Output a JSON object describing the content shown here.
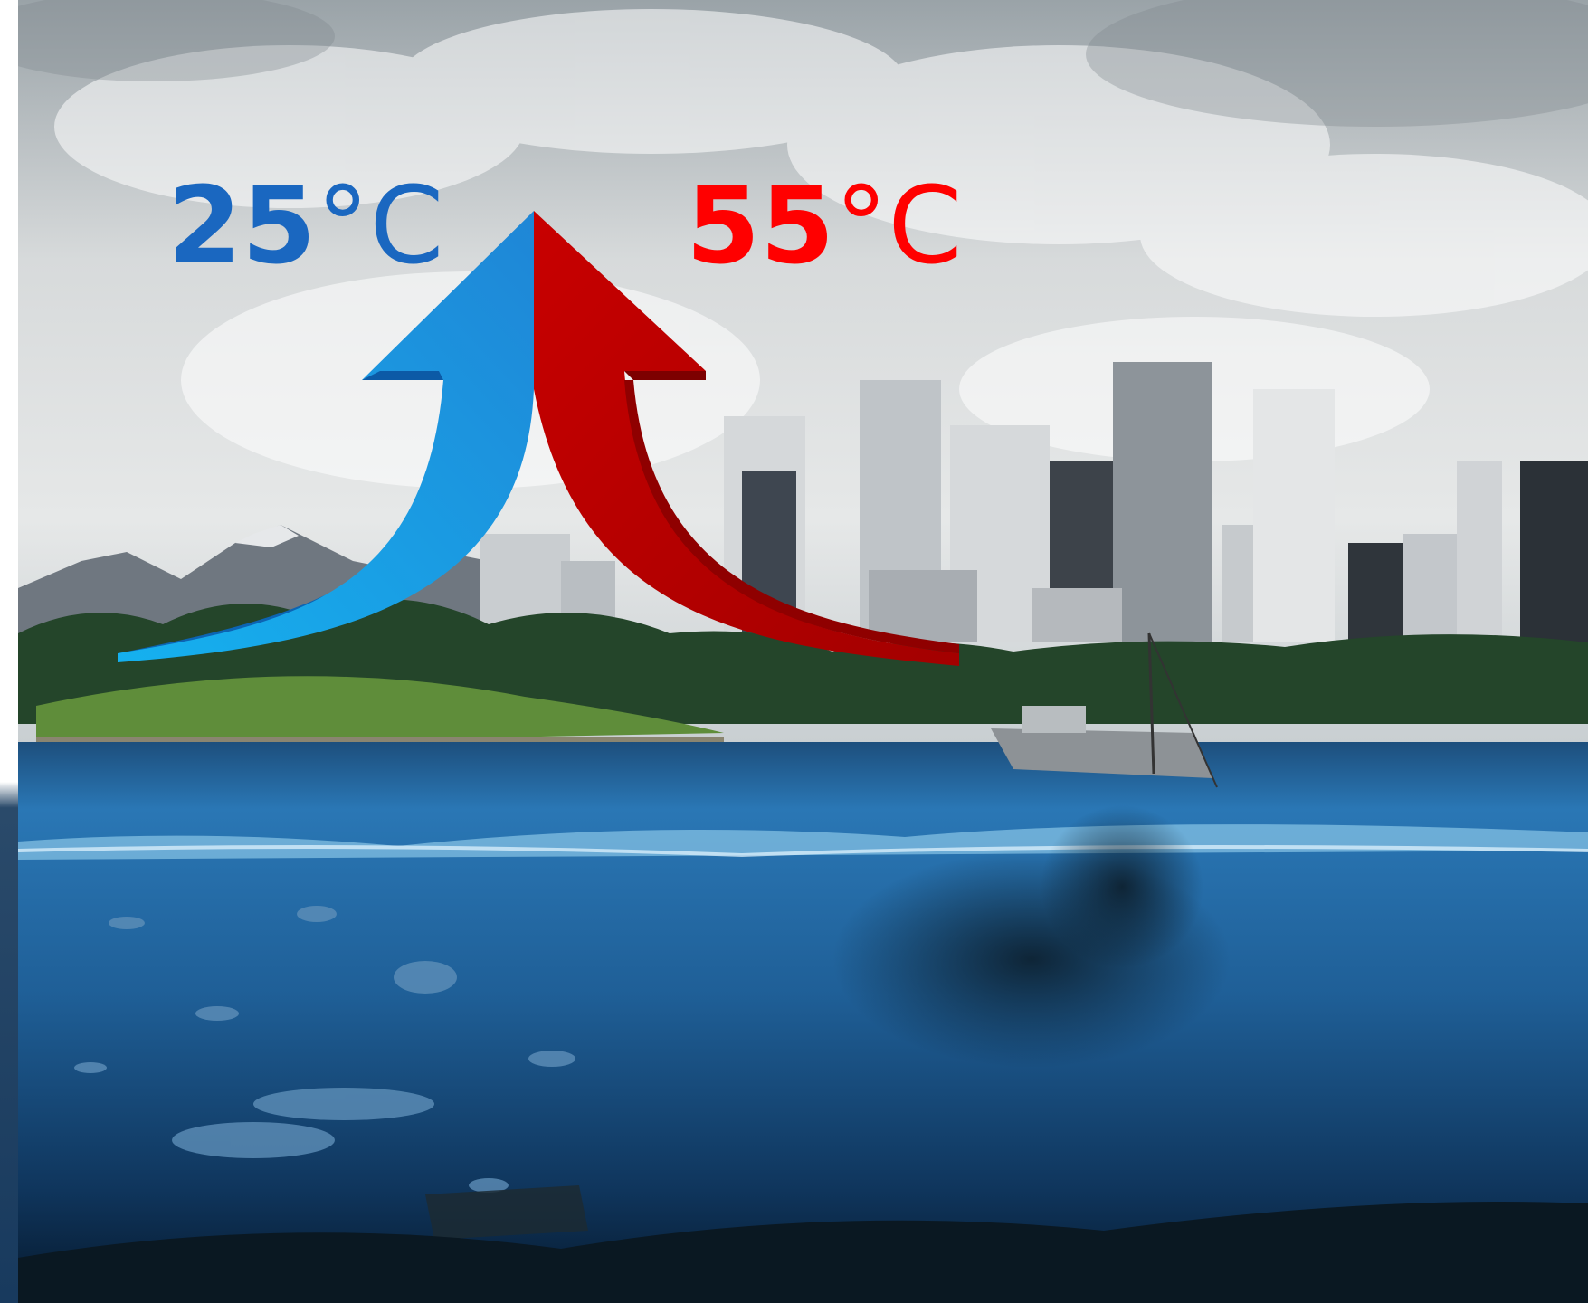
{
  "labels": {
    "cool": {
      "number": "25",
      "unit": "°C"
    },
    "hot": {
      "number": "55",
      "unit": "°C"
    }
  },
  "colors": {
    "cool_text": "#1a67c0",
    "hot_text": "#ff0000",
    "cool_arrow": "#1f97e6",
    "hot_arrow": "#b30000"
  },
  "scene": {
    "icons": [
      "cloud-sky",
      "mountains",
      "city-skyline",
      "trees",
      "fishing-boat",
      "ocean",
      "fish-school",
      "pollution-debris",
      "shipwreck"
    ]
  }
}
